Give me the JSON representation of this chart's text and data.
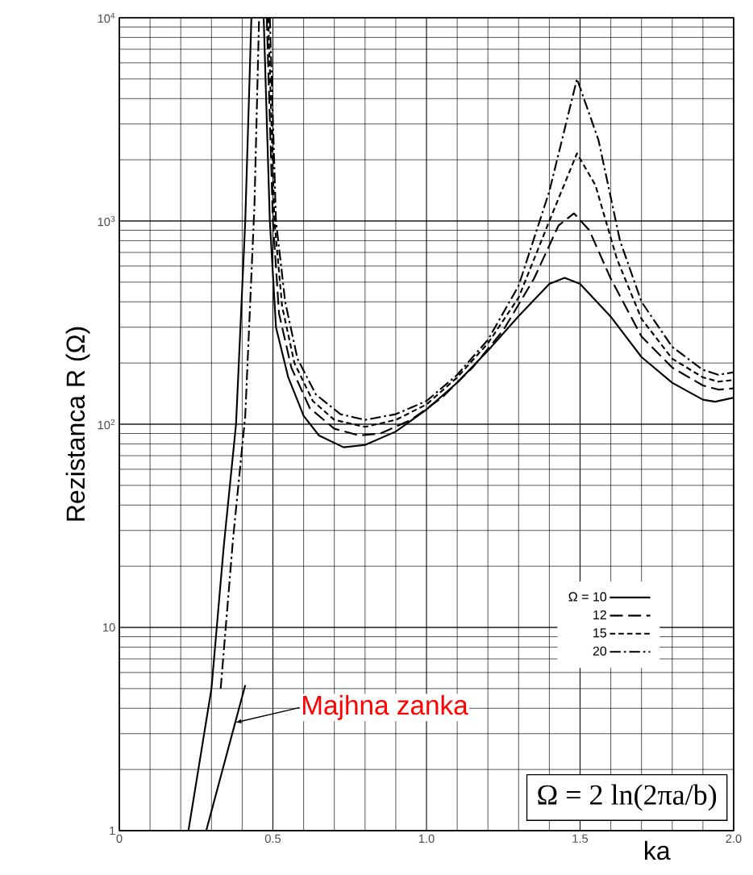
{
  "chart_data": {
    "type": "line",
    "ylabel": "Rezistanca R (Ω)",
    "xlabel": "ka",
    "log": "y",
    "grid": true,
    "legend": "bottom right",
    "marker": "none",
    "xlim": [
      0,
      2
    ],
    "ylim": [
      1,
      10000
    ],
    "xticks": [
      0,
      0.5,
      {
        "value": 1,
        "label": "1.0"
      },
      1.5,
      {
        "value": 2,
        "label": "2.0"
      }
    ],
    "yticks": [
      1,
      10,
      {
        "value": 100,
        "label": "10$^{2}$"
      },
      {
        "value": 1000,
        "label": "10$^{3}$"
      },
      {
        "value": 10000,
        "label": "10$^{4}$"
      }
    ],
    "series": [
      {
        "name": "Ω = 10",
        "color": "#000000",
        "line_style": "solid",
        "x": [
          0.225,
          0.3,
          0.34,
          0.38,
          0.41,
          0.43,
          0.45,
          0.47,
          0.49,
          0.51,
          0.55,
          0.6,
          0.65,
          0.73,
          0.8,
          0.9,
          1.0,
          1.1,
          1.2,
          1.3,
          1.4,
          1.45,
          1.5,
          1.6,
          1.7,
          1.8,
          1.9,
          1.94,
          2.0
        ],
        "values": [
          1,
          5,
          25,
          100,
          1000,
          10000,
          null,
          10000,
          1000,
          300,
          170,
          110,
          88,
          77,
          79,
          92,
          118,
          160,
          230,
          340,
          490,
          525,
          490,
          338,
          214,
          160,
          132,
          129,
          135
        ]
      },
      {
        "name": "12",
        "color": "#000000",
        "line_style": "longdashed",
        "x": [
          0.48,
          0.5,
          0.52,
          0.56,
          0.62,
          0.7,
          0.78,
          0.85,
          0.95,
          1.05,
          1.15,
          1.25,
          1.35,
          1.43,
          1.48,
          1.53,
          1.6,
          1.7,
          1.8,
          1.9,
          1.95,
          2.0
        ],
        "values": [
          10000,
          1000,
          350,
          190,
          120,
          95,
          88,
          90,
          105,
          135,
          190,
          290,
          520,
          950,
          1090,
          900,
          520,
          270,
          190,
          155,
          148,
          150
        ]
      },
      {
        "name": "15",
        "color": "#000000",
        "line_style": "dashed",
        "x": [
          0.485,
          0.505,
          0.53,
          0.57,
          0.63,
          0.7,
          0.8,
          0.9,
          1.0,
          1.1,
          1.2,
          1.3,
          1.4,
          1.49,
          1.55,
          1.62,
          1.7,
          1.8,
          1.9,
          1.95,
          2.0
        ],
        "values": [
          10000,
          1000,
          380,
          200,
          130,
          105,
          97,
          105,
          125,
          170,
          250,
          420,
          1000,
          2150,
          1500,
          650,
          330,
          210,
          170,
          162,
          165
        ]
      },
      {
        "name": "20",
        "color": "#000000",
        "line_style": "dashdotted",
        "x": [
          0.33,
          0.37,
          0.41,
          0.44,
          0.455,
          0.47,
          0.49,
          0.51,
          0.54,
          0.58,
          0.64,
          0.72,
          0.8,
          0.9,
          1.0,
          1.1,
          1.2,
          1.3,
          1.4,
          1.49,
          1.56,
          1.63,
          1.7,
          1.8,
          1.9,
          1.95,
          2.0
        ],
        "values": [
          5,
          27,
          110,
          1200,
          10000,
          null,
          10000,
          1000,
          400,
          210,
          140,
          112,
          105,
          112,
          130,
          175,
          260,
          480,
          1400,
          5000,
          2500,
          800,
          400,
          240,
          185,
          175,
          180
        ]
      },
      {
        "color": "#000000",
        "line_style": "solid",
        "x": [
          0.283,
          0.41
        ],
        "values": [
          1,
          5.2
        ]
      }
    ],
    "annotations": [
      {
        "text": "Majhna zanka",
        "x": 0.377,
        "y": 3.4
      },
      "Ω = 2 ln(2πa/b)"
    ]
  }
}
